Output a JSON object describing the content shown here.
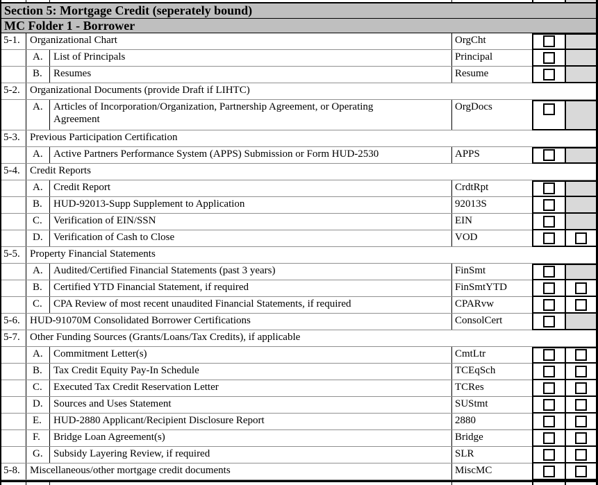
{
  "headers": {
    "section": "Section 5: Mortgage Credit (seperately bound)",
    "folder": "MC Folder 1 - Borrower"
  },
  "colors": {
    "header_bg": "#bfbfbf",
    "shaded_cell_bg": "#d9d9d9",
    "grid_line": "#909090",
    "border": "#000000"
  },
  "rows": [
    {
      "type": "item",
      "num": "5-1.",
      "letter": "",
      "desc": "Organizational Chart",
      "code": "OrgCht",
      "boxes": 1,
      "tall": false
    },
    {
      "type": "item",
      "num": "",
      "letter": "A.",
      "desc": "List of Principals",
      "code": "Principal",
      "boxes": 1,
      "tall": false
    },
    {
      "type": "item",
      "num": "",
      "letter": "B.",
      "desc": "Resumes",
      "code": "Resume",
      "boxes": 1,
      "tall": false
    },
    {
      "type": "section",
      "num": "5-2.",
      "letter": "",
      "desc": "Organizational Documents (provide Draft if LIHTC)",
      "code": "",
      "boxes": 0,
      "tall": false
    },
    {
      "type": "item",
      "num": "",
      "letter": "A.",
      "desc": "Articles of Incorporation/Organization, Partnership Agreement, or Operating Agreement",
      "code": "OrgDocs",
      "boxes": 1,
      "tall": true
    },
    {
      "type": "section",
      "num": "5-3.",
      "letter": "",
      "desc": "Previous Participation Certification",
      "code": "",
      "boxes": 0,
      "tall": false
    },
    {
      "type": "item",
      "num": "",
      "letter": "A.",
      "desc": "Active Partners Performance System (APPS) Submission or Form HUD-2530",
      "code": "APPS",
      "boxes": 1,
      "tall": false
    },
    {
      "type": "section",
      "num": "5-4.",
      "letter": "",
      "desc": "Credit Reports",
      "code": "",
      "boxes": 0,
      "tall": false
    },
    {
      "type": "item",
      "num": "",
      "letter": "A.",
      "desc": "Credit Report",
      "code": "CrdtRpt",
      "boxes": 1,
      "tall": false
    },
    {
      "type": "item",
      "num": "",
      "letter": "B.",
      "desc": "HUD-92013-Supp Supplement to Application",
      "code": "92013S",
      "boxes": 1,
      "tall": false
    },
    {
      "type": "item",
      "num": "",
      "letter": "C.",
      "desc": "Verification of EIN/SSN",
      "code": "EIN",
      "boxes": 1,
      "tall": false
    },
    {
      "type": "item",
      "num": "",
      "letter": "D.",
      "desc": "Verification of Cash to Close",
      "code": "VOD",
      "boxes": 2,
      "tall": false
    },
    {
      "type": "section",
      "num": "5-5.",
      "letter": "",
      "desc": "Property Financial Statements",
      "code": "",
      "boxes": 0,
      "tall": false
    },
    {
      "type": "item",
      "num": "",
      "letter": "A.",
      "desc": "Audited/Certified Financial Statements (past 3 years)",
      "code": "FinSmt",
      "boxes": 1,
      "tall": false
    },
    {
      "type": "item",
      "num": "",
      "letter": "B.",
      "desc": "Certified YTD Financial Statement, if required",
      "code": "FinSmtYTD",
      "boxes": 2,
      "tall": false
    },
    {
      "type": "item",
      "num": "",
      "letter": "C.",
      "desc": "CPA Review of most recent unaudited Financial Statements, if required",
      "code": "CPARvw",
      "boxes": 2,
      "tall": false
    },
    {
      "type": "item",
      "num": "5-6.",
      "letter": "",
      "desc": "HUD-91070M Consolidated Borrower Certifications",
      "code": "ConsolCert",
      "boxes": 1,
      "tall": false
    },
    {
      "type": "section",
      "num": "5-7.",
      "letter": "",
      "desc": "Other Funding Sources (Grants/Loans/Tax Credits), if applicable",
      "code": "",
      "boxes": 0,
      "tall": false
    },
    {
      "type": "item",
      "num": "",
      "letter": "A.",
      "desc": "Commitment Letter(s)",
      "code": "CmtLtr",
      "boxes": 2,
      "tall": false
    },
    {
      "type": "item",
      "num": "",
      "letter": "B.",
      "desc": "Tax Credit Equity Pay-In Schedule",
      "code": "TCEqSch",
      "boxes": 2,
      "tall": false
    },
    {
      "type": "item",
      "num": "",
      "letter": "C.",
      "desc": "Executed Tax Credit Reservation Letter",
      "code": "TCRes",
      "boxes": 2,
      "tall": false
    },
    {
      "type": "item",
      "num": "",
      "letter": "D.",
      "desc": "Sources and Uses Statement",
      "code": "SUStmt",
      "boxes": 2,
      "tall": false
    },
    {
      "type": "item",
      "num": "",
      "letter": "E.",
      "desc": "HUD-2880 Applicant/Recipient Disclosure Report",
      "code": "2880",
      "boxes": 2,
      "tall": false
    },
    {
      "type": "item",
      "num": "",
      "letter": "F.",
      "desc": "Bridge Loan Agreement(s)",
      "code": "Bridge",
      "boxes": 2,
      "tall": false
    },
    {
      "type": "item",
      "num": "",
      "letter": "G.",
      "desc": "Subsidy Layering Review, if required",
      "code": "SLR",
      "boxes": 2,
      "tall": false
    },
    {
      "type": "item",
      "num": "5-8.",
      "letter": "",
      "desc": "Miscellaneous/other mortgage credit documents",
      "code": "MiscMC",
      "boxes": 2,
      "tall": false
    }
  ]
}
